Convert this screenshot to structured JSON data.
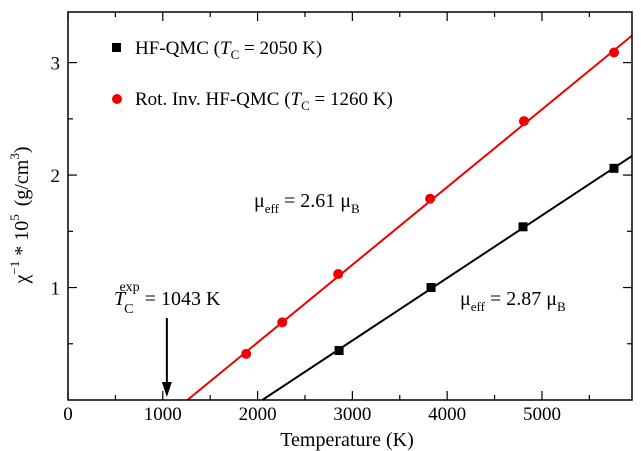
{
  "chart_data": {
    "type": "scatter",
    "xlabel": "Temperature (K)",
    "ylabel": {
      "base": "χ",
      "sup1": "−1",
      "mid": " * 10",
      "sup2": "5",
      "unit": "(g/cm",
      "unit_sup": "3",
      "unit_close": ")"
    },
    "xlim": [
      0,
      5950
    ],
    "ylim": [
      0,
      3.45
    ],
    "xticks": [
      0,
      1000,
      2000,
      3000,
      4000,
      5000
    ],
    "yticks": [
      1,
      2,
      3
    ],
    "series": [
      {
        "name": {
          "prefix": "HF-QMC (",
          "T": "T",
          "sub": "C",
          "suffix": " = 2050 K)"
        },
        "marker": "square",
        "color": "#000000",
        "x": [
          2860,
          3830,
          4800,
          5760
        ],
        "y": [
          0.44,
          1.0,
          1.54,
          2.06
        ],
        "fit_line": {
          "x": [
            2050,
            5950
          ],
          "y": [
            0.0,
            2.17
          ]
        }
      },
      {
        "name": {
          "prefix": "Rot. Inv. HF-QMC (",
          "T": "T",
          "sub": "C",
          "suffix": " = 1260 K)"
        },
        "marker": "circle",
        "color": "#ee0000",
        "x": [
          1880,
          2260,
          2850,
          3820,
          4810,
          5760
        ],
        "y": [
          0.41,
          0.69,
          1.12,
          1.79,
          2.48,
          3.09
        ],
        "fit_line": {
          "x": [
            1260,
            5950
          ],
          "y": [
            0.0,
            3.24
          ]
        }
      }
    ],
    "annotations": [
      {
        "id": "mu_red",
        "mu": "μ",
        "sub1": "eff",
        "eq": " = 2.61 μ",
        "sub2": "B",
        "anchor": [
          2700,
          1.79
        ]
      },
      {
        "id": "mu_black",
        "mu": "μ",
        "sub1": "eff",
        "eq": " = 2.87 μ",
        "sub2": "B",
        "anchor": [
          4100,
          0.92
        ]
      },
      {
        "id": "tc_exp",
        "T": "T",
        "sub": "C",
        "sup": "exp",
        "eq": " = 1043 K",
        "value": 1043
      }
    ],
    "legend_position": "top-left"
  }
}
